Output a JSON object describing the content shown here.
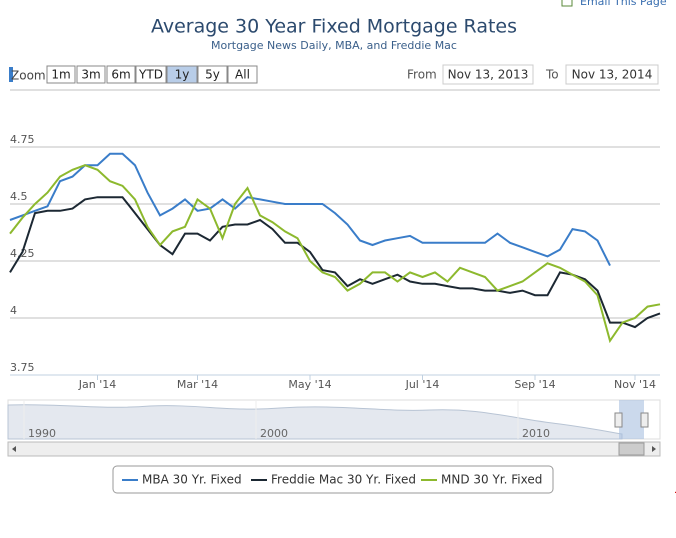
{
  "email_link": "Email This Page",
  "range_selector": {
    "zoom_label": "Zoom",
    "buttons": [
      "1m",
      "3m",
      "6m",
      "YTD",
      "1y",
      "5y",
      "All"
    ],
    "selected": 4,
    "from_label": "From",
    "from_value": "Nov 13, 2013",
    "to_label": "To",
    "to_value": "Nov 13, 2014"
  },
  "navigator": {
    "labels": [
      "1990",
      "2000",
      "2010"
    ]
  },
  "chart_data": {
    "type": "line",
    "title": "Average 30 Year Fixed Mortgage Rates",
    "subtitle": "Mortgage News Daily, MBA, and Freddie Mac",
    "categories": [
      null,
      null,
      null,
      null,
      null,
      null,
      null,
      "Jan '14",
      null,
      null,
      null,
      null,
      null,
      null,
      null,
      "Mar '14",
      null,
      null,
      null,
      null,
      null,
      null,
      null,
      null,
      "May '14",
      null,
      null,
      null,
      null,
      null,
      null,
      null,
      null,
      "Jul '14",
      null,
      null,
      null,
      null,
      null,
      null,
      null,
      null,
      "Sep '14",
      null,
      null,
      null,
      null,
      null,
      null,
      null,
      "Nov '14",
      null,
      null
    ],
    "ylim": [
      3.75,
      5
    ],
    "yticks": [
      3.75,
      4,
      4.25,
      4.5,
      4.75
    ],
    "grid": true,
    "legend": "bottom",
    "series": [
      {
        "name": "MBA 30 Yr. Fixed",
        "color": "#3a7dc9",
        "values": [
          4.43,
          4.45,
          4.47,
          4.49,
          4.6,
          4.62,
          4.67,
          4.67,
          4.72,
          4.72,
          4.67,
          4.55,
          4.45,
          4.48,
          4.52,
          4.47,
          4.48,
          4.52,
          4.48,
          4.53,
          4.52,
          4.51,
          4.5,
          4.5,
          4.5,
          4.5,
          4.46,
          4.41,
          4.34,
          4.32,
          4.34,
          4.35,
          4.36,
          4.33,
          4.33,
          4.33,
          4.33,
          4.33,
          4.33,
          4.37,
          4.33,
          4.31,
          4.29,
          4.27,
          4.3,
          4.39,
          4.38,
          4.34,
          4.23,
          null,
          null,
          null,
          null
        ]
      },
      {
        "name": "Freddie Mac 30 Yr. Fixed",
        "color": "#1c2833",
        "values": [
          4.2,
          4.29,
          4.46,
          4.47,
          4.47,
          4.48,
          4.52,
          4.53,
          4.53,
          4.53,
          4.46,
          4.39,
          4.32,
          4.28,
          4.37,
          4.37,
          4.34,
          4.4,
          4.41,
          4.41,
          4.43,
          4.39,
          4.33,
          4.33,
          4.29,
          4.21,
          4.2,
          4.14,
          4.17,
          4.15,
          4.17,
          4.19,
          4.16,
          4.15,
          4.15,
          4.14,
          4.13,
          4.13,
          4.12,
          4.12,
          4.11,
          4.12,
          4.1,
          4.1,
          4.2,
          4.19,
          4.17,
          4.12,
          3.98,
          3.98,
          3.96,
          4.0,
          4.02
        ]
      },
      {
        "name": "MND 30 Yr. Fixed",
        "color": "#8db92e",
        "values": [
          4.37,
          4.44,
          4.5,
          4.55,
          4.62,
          4.65,
          4.67,
          4.65,
          4.6,
          4.58,
          4.52,
          4.4,
          4.32,
          4.38,
          4.4,
          4.52,
          4.48,
          4.35,
          4.5,
          4.57,
          4.45,
          4.42,
          4.38,
          4.35,
          4.25,
          4.2,
          4.18,
          4.12,
          4.15,
          4.2,
          4.2,
          4.16,
          4.2,
          4.18,
          4.2,
          4.16,
          4.22,
          4.2,
          4.18,
          4.12,
          4.14,
          4.16,
          4.2,
          4.24,
          4.22,
          4.19,
          4.16,
          4.1,
          3.9,
          3.98,
          4.0,
          4.05,
          4.06
        ]
      }
    ]
  }
}
